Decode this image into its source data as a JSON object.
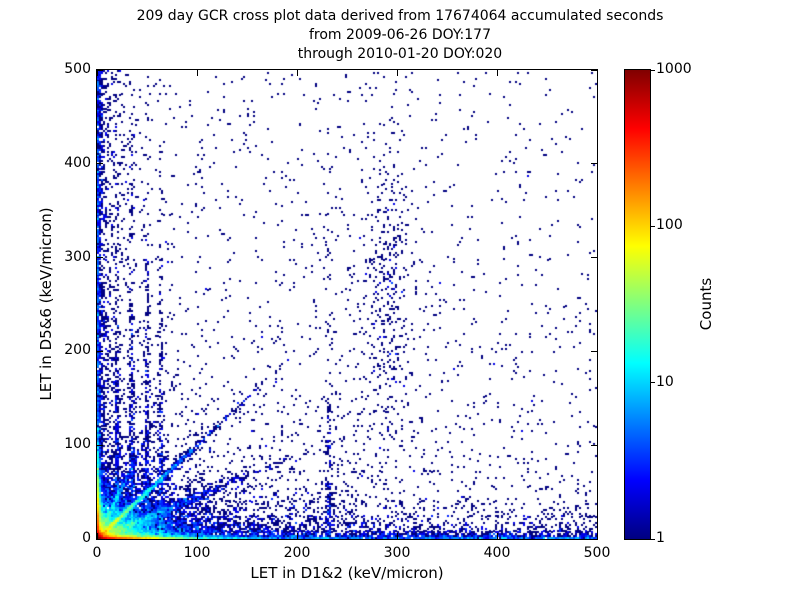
{
  "chart_data": {
    "type": "heatmap",
    "title_lines": [
      "209 day GCR cross plot data derived from 17674064 accumulated seconds",
      "from 2009-06-26 DOY:177",
      "through 2010-01-20 DOY:020"
    ],
    "xlabel": "LET in D1&2 (keV/micron)",
    "ylabel": "LET in D5&6 (keV/micron)",
    "xlim": [
      0,
      500
    ],
    "ylim": [
      0,
      500
    ],
    "x_ticks": [
      0,
      100,
      200,
      300,
      400,
      500
    ],
    "y_ticks": [
      0,
      100,
      200,
      300,
      400,
      500
    ],
    "grid": false,
    "colorbar": {
      "label": "Counts",
      "scale": "log",
      "min": 1,
      "max": 1000,
      "ticks": [
        1000,
        100,
        10,
        1
      ]
    },
    "colormap": {
      "name": "jet",
      "stops": [
        [
          0.0,
          "#000080"
        ],
        [
          0.125,
          "#0000ff"
        ],
        [
          0.375,
          "#00ffff"
        ],
        [
          0.625,
          "#ffff00"
        ],
        [
          0.875,
          "#ff0000"
        ],
        [
          1.0,
          "#800000"
        ]
      ]
    },
    "single_count_color": "#000080",
    "bin_size_data_units": 2,
    "seed": 42,
    "density_features": [
      {
        "name": "hot-corner",
        "type": "xy",
        "n": 3200,
        "x": {
          "dist": "exp",
          "scale": 4
        },
        "y": {
          "dist": "exp",
          "scale": 4
        }
      },
      {
        "name": "core-fan",
        "type": "xy",
        "n": 6500,
        "x": {
          "dist": "exp",
          "scale": 26
        },
        "y": {
          "dist": "exp",
          "scale": 13
        }
      },
      {
        "name": "core-halo",
        "type": "xy",
        "n": 3200,
        "x": {
          "dist": "exp",
          "scale": 55
        },
        "y": {
          "dist": "exp",
          "scale": 26
        }
      },
      {
        "name": "bottom-strip",
        "type": "xy",
        "n": 7000,
        "x": {
          "dist": "exp",
          "scale": 28
        },
        "y": {
          "dist": "exp",
          "scale": 1.2
        }
      },
      {
        "name": "bottom-strip-far",
        "type": "xy",
        "n": 1300,
        "x": {
          "dist": "uniform",
          "min": 0,
          "max": 500
        },
        "y": {
          "dist": "exp",
          "scale": 2.5
        }
      },
      {
        "name": "bottom-halo",
        "type": "xy",
        "n": 1500,
        "x": {
          "dist": "pow",
          "max": 500,
          "exp": 1.6
        },
        "y": {
          "dist": "exp",
          "scale": 16
        }
      },
      {
        "name": "left-strip",
        "type": "xy",
        "n": 5200,
        "x": {
          "dist": "exp",
          "scale": 1.2
        },
        "y": {
          "dist": "exp",
          "scale": 25
        }
      },
      {
        "name": "left-strip-tall",
        "type": "xy",
        "n": 1100,
        "x": {
          "dist": "exp",
          "scale": 2.2
        },
        "y": {
          "dist": "uniform",
          "min": 0,
          "max": 500
        }
      },
      {
        "name": "left-halo",
        "type": "xy",
        "n": 700,
        "x": {
          "dist": "exp",
          "scale": 12
        },
        "y": {
          "dist": "uniform",
          "min": 0,
          "max": 500
        }
      },
      {
        "name": "diag-main",
        "type": "diag",
        "n": 2800,
        "slope": 1.0,
        "t": {
          "dist": "exp",
          "scale": 30
        },
        "perp_sigma": 1.3
      },
      {
        "name": "diag-low",
        "type": "diag",
        "n": 1400,
        "slope": 0.45,
        "t": {
          "dist": "exp",
          "scale": 45
        },
        "perp_sigma": 2.5
      },
      {
        "name": "diag-steep",
        "type": "diag",
        "n": 650,
        "slope": 2.2,
        "t": {
          "dist": "exp",
          "scale": 14
        },
        "perp_sigma": 2.0
      },
      {
        "name": "streak-20",
        "type": "xy",
        "n": 420,
        "x": {
          "dist": "gauss",
          "mean": 20,
          "sigma": 1.2
        },
        "y": {
          "dist": "exp",
          "scale": 100
        }
      },
      {
        "name": "streak-35",
        "type": "xy",
        "n": 400,
        "x": {
          "dist": "gauss",
          "mean": 35,
          "sigma": 1.3
        },
        "y": {
          "dist": "exp",
          "scale": 115
        }
      },
      {
        "name": "streak-50",
        "type": "xy",
        "n": 350,
        "x": {
          "dist": "gauss",
          "mean": 50,
          "sigma": 1.4
        },
        "y": {
          "dist": "exp",
          "scale": 125
        }
      },
      {
        "name": "streak-64",
        "type": "xy",
        "n": 280,
        "x": {
          "dist": "gauss",
          "mean": 64,
          "sigma": 1.4
        },
        "y": {
          "dist": "exp",
          "scale": 110
        }
      },
      {
        "name": "streak-232",
        "type": "xy",
        "n": 190,
        "x": {
          "dist": "gauss",
          "mean": 232,
          "sigma": 2.2
        },
        "y": {
          "dist": "exp",
          "scale": 85
        }
      },
      {
        "name": "heavy-ion-cluster",
        "type": "xy",
        "n": 270,
        "x": {
          "dist": "gauss",
          "mean": 293,
          "sigma": 11
        },
        "y": {
          "dist": "gauss",
          "mean": 280,
          "sigma": 80
        }
      },
      {
        "name": "heavy-ion-halo",
        "type": "xy",
        "n": 170,
        "x": {
          "dist": "gauss",
          "mean": 285,
          "sigma": 30
        },
        "y": {
          "dist": "gauss",
          "mean": 240,
          "sigma": 110
        }
      },
      {
        "name": "background-low",
        "type": "xy",
        "n": 3000,
        "x": {
          "dist": "pow",
          "max": 500,
          "exp": 2.0
        },
        "y": {
          "dist": "pow",
          "max": 500,
          "exp": 3.4
        }
      },
      {
        "name": "background-uniform",
        "type": "xy",
        "n": 520,
        "x": {
          "dist": "uniform",
          "min": 0,
          "max": 500
        },
        "y": {
          "dist": "uniform",
          "min": 0,
          "max": 500
        }
      }
    ]
  }
}
